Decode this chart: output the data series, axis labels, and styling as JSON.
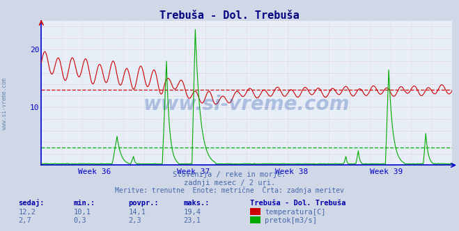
{
  "title": "Trebuša - Dol. Trebuša",
  "title_color": "#000080",
  "bg_color": "#d0d8e8",
  "plot_bg_color": "#e8eef8",
  "grid_color_h": "#e0a0a0",
  "grid_color_v": "#c8d0e0",
  "axis_color": "#0000cc",
  "text_color": "#4466aa",
  "watermark": "www.si-vreme.com",
  "subtitle1": "Slovenija / reke in morje.",
  "subtitle2": "zadnji mesec / 2 uri.",
  "subtitle3": "Meritve: trenutne  Enote: metrične  Črta: zadnja meritev",
  "stats_header": [
    "sedaj:",
    "min.:",
    "povpr.:",
    "maks.:"
  ],
  "stats_temp": [
    12.2,
    10.1,
    14.1,
    19.4
  ],
  "stats_flow": [
    2.7,
    0.3,
    2.3,
    23.1
  ],
  "legend_title": "Trebuša - Dol. Trebuša",
  "legend_temp": "temperatura[C]",
  "legend_flow": "pretok[m3/s]",
  "temp_color": "#cc0000",
  "flow_color": "#00aa00",
  "temp_avg_value": 13.0,
  "flow_avg_value": 3.0,
  "x_tick_labels": [
    "Week 36",
    "Week 37",
    "Week 38",
    "Week 39"
  ],
  "x_tick_positions": [
    0.13,
    0.37,
    0.61,
    0.84
  ],
  "ylim": [
    0,
    25
  ],
  "yticks": [
    10,
    20
  ],
  "n_points": 500
}
